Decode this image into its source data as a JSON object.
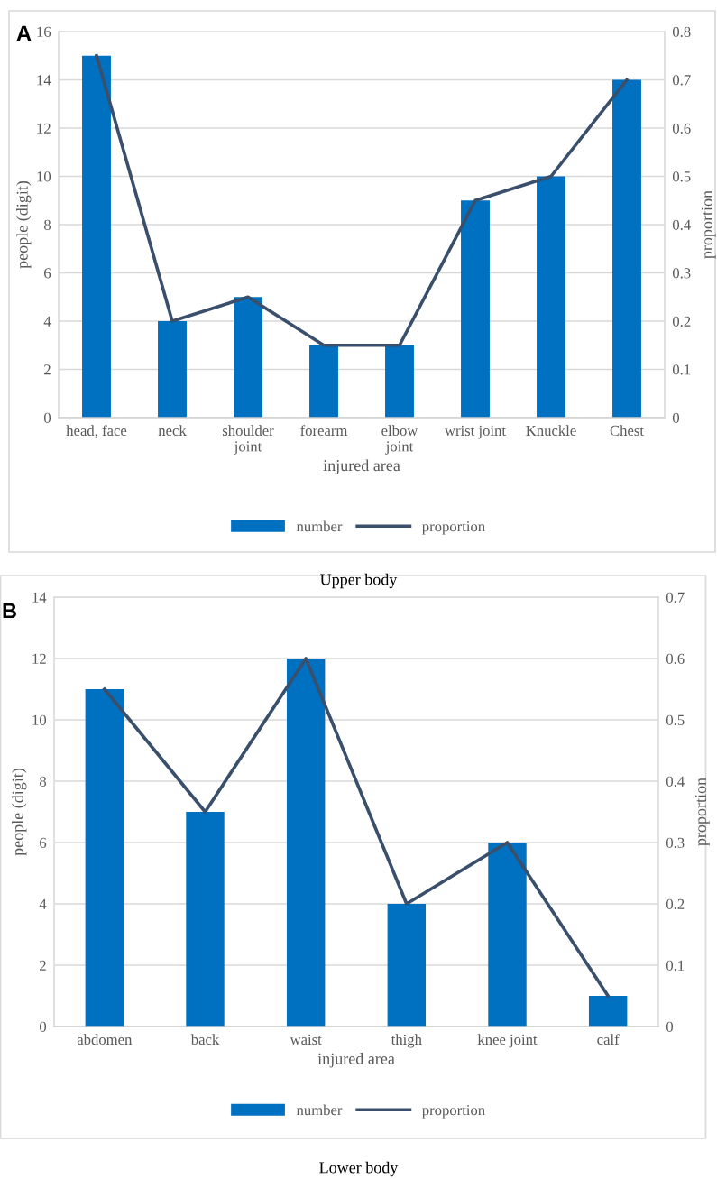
{
  "chart_data": [
    {
      "type": "bar",
      "xlabel": "injured area",
      "ylabel": "people (digit)",
      "y2label": "proportion",
      "categories": [
        "head, face",
        "neck",
        "shoulder\njoint",
        "forearm",
        "elbow\njoint",
        "wrist joint",
        "Knuckle",
        "Chest"
      ],
      "series": [
        {
          "name": "number",
          "color": "#0070c0",
          "values": [
            15,
            4,
            5,
            3,
            3,
            9,
            10,
            14
          ]
        },
        {
          "name": "proportion",
          "type": "line",
          "axis": "y2",
          "color": "#3a4f6b",
          "values": [
            0.75,
            0.2,
            0.25,
            0.15,
            0.15,
            0.45,
            0.5,
            0.7
          ]
        }
      ],
      "ylim": [
        0,
        16
      ],
      "yticks": [
        0,
        2,
        4,
        6,
        8,
        10,
        12,
        14,
        16
      ],
      "y2lim": [
        0,
        0.8
      ],
      "y2ticks": [
        0,
        0.1,
        0.2,
        0.3,
        0.4,
        0.5,
        0.6,
        0.7,
        0.8
      ],
      "grid": "y",
      "legend": "bottom",
      "marker": "none",
      "line_style": "solid",
      "annotations": [
        "A",
        "Upper body"
      ]
    },
    {
      "type": "bar",
      "xlabel": "injured area",
      "ylabel": "people (digit)",
      "y2label": "proportion",
      "categories": [
        "abdomen",
        "back",
        "waist",
        "thigh",
        "knee joint",
        "calf"
      ],
      "series": [
        {
          "name": "number",
          "color": "#0070c0",
          "values": [
            11,
            7,
            12,
            4,
            6,
            1
          ]
        },
        {
          "name": "proportion",
          "type": "line",
          "axis": "y2",
          "color": "#3a4f6b",
          "values": [
            0.55,
            0.35,
            0.6,
            0.2,
            0.3,
            0.05
          ]
        }
      ],
      "ylim": [
        0,
        14
      ],
      "yticks": [
        0,
        2,
        4,
        6,
        8,
        10,
        12,
        14
      ],
      "y2lim": [
        0,
        0.7
      ],
      "y2ticks": [
        0,
        0.1,
        0.2,
        0.3,
        0.4,
        0.5,
        0.6,
        0.7
      ],
      "grid": "y",
      "legend": "bottom",
      "marker": "none",
      "line_style": "solid",
      "annotations": [
        "B",
        "Lower body"
      ]
    }
  ]
}
